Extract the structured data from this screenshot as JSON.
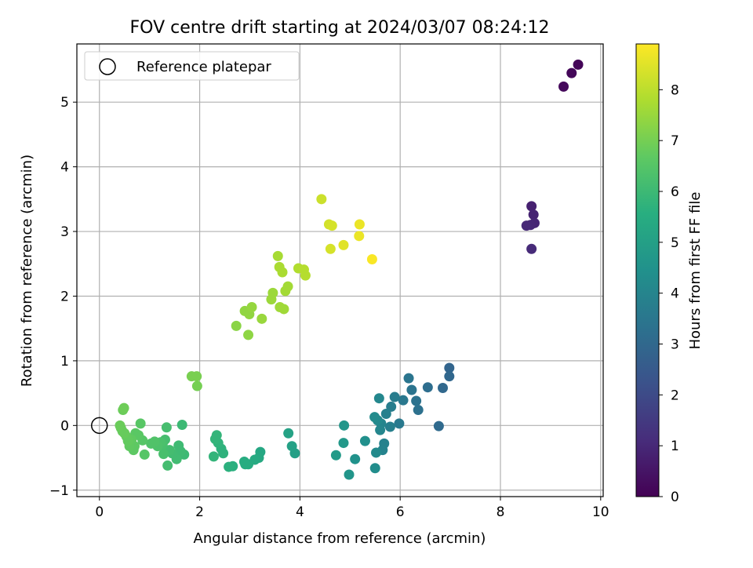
{
  "chart_data": {
    "type": "scatter",
    "title": "FOV centre drift starting at 2024/03/07 08:24:12",
    "xlabel": "Angular distance from reference (arcmin)",
    "ylabel": "Rotation from reference (arcmin)",
    "xlim": [
      -0.45,
      10.05
    ],
    "ylim": [
      -1.1,
      5.9
    ],
    "xticks": [
      0,
      2,
      4,
      6,
      8,
      10
    ],
    "yticks": [
      -1,
      0,
      1,
      2,
      3,
      4,
      5
    ],
    "grid": true,
    "legend": {
      "position": "top-left",
      "entries": [
        "Reference platepar"
      ]
    },
    "reference_point": {
      "x": 0,
      "y": 0
    },
    "colorbar": {
      "label": "Hours from first FF file",
      "range": [
        0,
        8.9
      ],
      "ticks": [
        0,
        1,
        2,
        3,
        4,
        5,
        6,
        7,
        8
      ],
      "colormap": "viridis"
    },
    "points": [
      {
        "x": 9.55,
        "y": 5.58,
        "c": 0.1
      },
      {
        "x": 9.42,
        "y": 5.45,
        "c": 0.15
      },
      {
        "x": 9.26,
        "y": 5.24,
        "c": 0.2
      },
      {
        "x": 8.62,
        "y": 3.39,
        "c": 0.8
      },
      {
        "x": 8.66,
        "y": 3.26,
        "c": 0.85
      },
      {
        "x": 8.68,
        "y": 3.13,
        "c": 0.9
      },
      {
        "x": 8.6,
        "y": 3.1,
        "c": 0.95
      },
      {
        "x": 8.52,
        "y": 3.09,
        "c": 1.0
      },
      {
        "x": 8.62,
        "y": 2.73,
        "c": 1.05
      },
      {
        "x": 6.98,
        "y": 0.89,
        "c": 2.9
      },
      {
        "x": 6.98,
        "y": 0.76,
        "c": 2.95
      },
      {
        "x": 6.85,
        "y": 0.58,
        "c": 3.0
      },
      {
        "x": 6.77,
        "y": -0.01,
        "c": 3.05
      },
      {
        "x": 6.55,
        "y": 0.59,
        "c": 3.2
      },
      {
        "x": 6.36,
        "y": 0.24,
        "c": 3.3
      },
      {
        "x": 6.32,
        "y": 0.38,
        "c": 3.35
      },
      {
        "x": 6.23,
        "y": 0.55,
        "c": 3.4
      },
      {
        "x": 6.17,
        "y": 0.73,
        "c": 3.45
      },
      {
        "x": 6.06,
        "y": 0.39,
        "c": 3.55
      },
      {
        "x": 5.98,
        "y": 0.03,
        "c": 3.6
      },
      {
        "x": 5.89,
        "y": 0.44,
        "c": 3.7
      },
      {
        "x": 5.82,
        "y": 0.29,
        "c": 3.75
      },
      {
        "x": 5.8,
        "y": -0.02,
        "c": 3.8
      },
      {
        "x": 5.72,
        "y": 0.18,
        "c": 3.85
      },
      {
        "x": 5.68,
        "y": -0.28,
        "c": 3.9
      },
      {
        "x": 5.65,
        "y": -0.38,
        "c": 3.95
      },
      {
        "x": 5.62,
        "y": 0.03,
        "c": 4.0
      },
      {
        "x": 5.6,
        "y": -0.07,
        "c": 4.05
      },
      {
        "x": 5.58,
        "y": 0.42,
        "c": 4.1
      },
      {
        "x": 5.55,
        "y": 0.08,
        "c": 4.15
      },
      {
        "x": 5.52,
        "y": -0.42,
        "c": 4.2
      },
      {
        "x": 5.49,
        "y": 0.13,
        "c": 4.25
      },
      {
        "x": 5.5,
        "y": -0.66,
        "c": 4.3
      },
      {
        "x": 5.3,
        "y": -0.24,
        "c": 4.4
      },
      {
        "x": 5.1,
        "y": -0.52,
        "c": 4.5
      },
      {
        "x": 4.98,
        "y": -0.76,
        "c": 4.6
      },
      {
        "x": 4.88,
        "y": 0.0,
        "c": 4.65
      },
      {
        "x": 4.87,
        "y": -0.27,
        "c": 4.7
      },
      {
        "x": 4.72,
        "y": -0.46,
        "c": 4.8
      },
      {
        "x": 3.9,
        "y": -0.43,
        "c": 5.0
      },
      {
        "x": 3.84,
        "y": -0.32,
        "c": 5.05
      },
      {
        "x": 3.77,
        "y": -0.12,
        "c": 5.1
      },
      {
        "x": 3.21,
        "y": -0.41,
        "c": 5.3
      },
      {
        "x": 3.18,
        "y": -0.5,
        "c": 5.35
      },
      {
        "x": 3.1,
        "y": -0.53,
        "c": 5.4
      },
      {
        "x": 2.97,
        "y": -0.6,
        "c": 5.45
      },
      {
        "x": 2.91,
        "y": -0.6,
        "c": 5.5
      },
      {
        "x": 2.89,
        "y": -0.56,
        "c": 5.5
      },
      {
        "x": 2.66,
        "y": -0.63,
        "c": 5.6
      },
      {
        "x": 2.58,
        "y": -0.64,
        "c": 5.65
      },
      {
        "x": 2.47,
        "y": -0.43,
        "c": 5.7
      },
      {
        "x": 2.43,
        "y": -0.36,
        "c": 5.7
      },
      {
        "x": 2.37,
        "y": -0.27,
        "c": 5.75
      },
      {
        "x": 2.34,
        "y": -0.15,
        "c": 5.8
      },
      {
        "x": 2.31,
        "y": -0.21,
        "c": 5.8
      },
      {
        "x": 2.28,
        "y": -0.48,
        "c": 5.8
      },
      {
        "x": 1.69,
        "y": -0.45,
        "c": 6.0
      },
      {
        "x": 1.65,
        "y": 0.01,
        "c": 6.0
      },
      {
        "x": 1.62,
        "y": -0.4,
        "c": 6.05
      },
      {
        "x": 1.58,
        "y": -0.31,
        "c": 6.05
      },
      {
        "x": 1.54,
        "y": -0.52,
        "c": 6.1
      },
      {
        "x": 1.45,
        "y": -0.43,
        "c": 6.1
      },
      {
        "x": 1.4,
        "y": -0.38,
        "c": 6.15
      },
      {
        "x": 1.36,
        "y": -0.62,
        "c": 6.15
      },
      {
        "x": 1.34,
        "y": -0.03,
        "c": 6.2
      },
      {
        "x": 1.31,
        "y": -0.22,
        "c": 6.2
      },
      {
        "x": 1.28,
        "y": -0.44,
        "c": 6.25
      },
      {
        "x": 1.26,
        "y": -0.3,
        "c": 6.25
      },
      {
        "x": 1.22,
        "y": -0.26,
        "c": 6.3
      },
      {
        "x": 1.16,
        "y": -0.32,
        "c": 6.35
      },
      {
        "x": 1.1,
        "y": -0.25,
        "c": 6.4
      },
      {
        "x": 1.03,
        "y": -0.28,
        "c": 6.4
      },
      {
        "x": 0.9,
        "y": -0.45,
        "c": 6.5
      },
      {
        "x": 0.86,
        "y": -0.23,
        "c": 6.5
      },
      {
        "x": 0.82,
        "y": 0.03,
        "c": 6.55
      },
      {
        "x": 0.78,
        "y": -0.15,
        "c": 6.6
      },
      {
        "x": 0.72,
        "y": -0.12,
        "c": 6.6
      },
      {
        "x": 0.7,
        "y": -0.32,
        "c": 6.65
      },
      {
        "x": 0.68,
        "y": -0.38,
        "c": 6.65
      },
      {
        "x": 0.64,
        "y": -0.22,
        "c": 6.7
      },
      {
        "x": 0.6,
        "y": -0.32,
        "c": 6.7
      },
      {
        "x": 0.57,
        "y": -0.24,
        "c": 6.75
      },
      {
        "x": 0.54,
        "y": -0.17,
        "c": 6.75
      },
      {
        "x": 0.5,
        "y": -0.12,
        "c": 6.8
      },
      {
        "x": 0.46,
        "y": -0.09,
        "c": 6.8
      },
      {
        "x": 0.43,
        "y": -0.04,
        "c": 6.8
      },
      {
        "x": 0.41,
        "y": 0.0,
        "c": 6.85
      },
      {
        "x": 0.47,
        "y": 0.24,
        "c": 6.85
      },
      {
        "x": 0.49,
        "y": 0.27,
        "c": 6.9
      },
      {
        "x": 1.95,
        "y": 0.61,
        "c": 7.0
      },
      {
        "x": 1.94,
        "y": 0.76,
        "c": 7.05
      },
      {
        "x": 1.84,
        "y": 0.76,
        "c": 7.05
      },
      {
        "x": 2.73,
        "y": 1.54,
        "c": 7.3
      },
      {
        "x": 2.97,
        "y": 1.4,
        "c": 7.35
      },
      {
        "x": 2.9,
        "y": 1.77,
        "c": 7.4
      },
      {
        "x": 2.99,
        "y": 1.72,
        "c": 7.4
      },
      {
        "x": 3.04,
        "y": 1.83,
        "c": 7.45
      },
      {
        "x": 3.24,
        "y": 1.65,
        "c": 7.5
      },
      {
        "x": 3.43,
        "y": 1.95,
        "c": 7.55
      },
      {
        "x": 3.46,
        "y": 2.05,
        "c": 7.55
      },
      {
        "x": 3.6,
        "y": 1.83,
        "c": 7.6
      },
      {
        "x": 3.68,
        "y": 1.8,
        "c": 7.6
      },
      {
        "x": 3.71,
        "y": 2.08,
        "c": 7.65
      },
      {
        "x": 3.76,
        "y": 2.15,
        "c": 7.65
      },
      {
        "x": 3.56,
        "y": 2.62,
        "c": 7.7
      },
      {
        "x": 3.59,
        "y": 2.45,
        "c": 7.75
      },
      {
        "x": 3.65,
        "y": 2.37,
        "c": 7.75
      },
      {
        "x": 3.97,
        "y": 2.43,
        "c": 7.85
      },
      {
        "x": 4.08,
        "y": 2.41,
        "c": 7.9
      },
      {
        "x": 4.11,
        "y": 2.32,
        "c": 7.9
      },
      {
        "x": 4.43,
        "y": 3.5,
        "c": 8.2
      },
      {
        "x": 4.58,
        "y": 3.11,
        "c": 8.3
      },
      {
        "x": 4.64,
        "y": 3.09,
        "c": 8.35
      },
      {
        "x": 4.61,
        "y": 2.73,
        "c": 8.35
      },
      {
        "x": 4.87,
        "y": 2.79,
        "c": 8.5
      },
      {
        "x": 5.19,
        "y": 3.11,
        "c": 8.65
      },
      {
        "x": 5.18,
        "y": 2.93,
        "c": 8.65
      },
      {
        "x": 5.44,
        "y": 2.57,
        "c": 8.85
      }
    ]
  }
}
